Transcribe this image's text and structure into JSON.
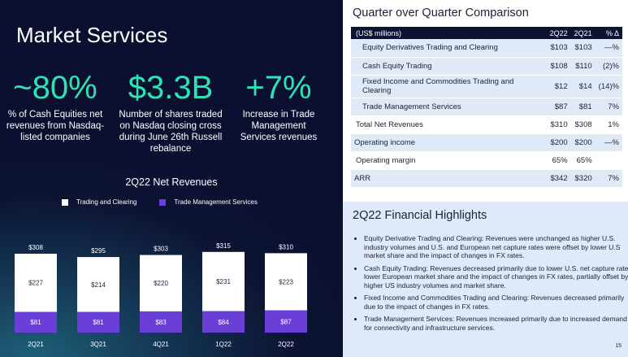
{
  "title": "Market Services",
  "kpis": [
    {
      "value": "~80%",
      "description": "% of Cash Equities net revenues from Nasdaq-listed companies"
    },
    {
      "value": "$3.3B",
      "description": "Number of shares traded on Nasdaq closing cross during June 26th Russell rebalance"
    },
    {
      "value": "+7%",
      "description": "Increase in Trade Management Services revenues"
    }
  ],
  "chart_data": {
    "type": "bar",
    "title": "2Q22 Net Revenues",
    "stacked": true,
    "categories": [
      "2Q21",
      "3Q21",
      "4Q21",
      "1Q22",
      "2Q22"
    ],
    "series": [
      {
        "name": "Trade Management Services",
        "values": [
          81,
          81,
          83,
          84,
          87
        ],
        "color": "#6a3fd8",
        "labels": [
          "$81",
          "$81",
          "$83",
          "$84",
          "$87"
        ]
      },
      {
        "name": "Trading and Clearing",
        "values": [
          227,
          214,
          220,
          231,
          223
        ],
        "color": "#ffffff",
        "labels": [
          "$227",
          "$214",
          "$220",
          "$231",
          "$223"
        ]
      }
    ],
    "totals": [
      308,
      295,
      303,
      315,
      310
    ],
    "total_labels": [
      "$308",
      "$295",
      "$303",
      "$315",
      "$310"
    ],
    "legend_order": [
      "Trading and Clearing",
      "Trade Management Services"
    ],
    "legend_position": "top",
    "grid": false
  },
  "comparison": {
    "title": "Quarter over Quarter Comparison",
    "headers": [
      "(US$ millions)",
      "2Q22",
      "2Q21",
      "% Δ"
    ],
    "rows": [
      {
        "label": "Equity Derivatives Trading and Clearing",
        "q2q22": "$103",
        "q2q21": "$103",
        "change": "—%",
        "type": "sub"
      },
      {
        "label": "Cash Equity Trading",
        "q2q22": "$108",
        "q2q21": "$110",
        "change": "(2)%",
        "type": "sub"
      },
      {
        "label": "Fixed Income and Commodities Trading and Clearing",
        "q2q22": "$12",
        "q2q21": "$14",
        "change": "(14)%",
        "type": "sub"
      },
      {
        "label": "Trade Management Services",
        "q2q22": "$87",
        "q2q21": "$81",
        "change": "7%",
        "type": "sub"
      },
      {
        "label": "Total Net Revenues",
        "q2q22": "$310",
        "q2q21": "$308",
        "change": "1%",
        "type": "main"
      },
      {
        "label": "Operating income",
        "q2q22": "$200",
        "q2q21": "$200",
        "change": "—%",
        "type": "shade"
      },
      {
        "label": "Operating margin",
        "q2q22": "65%",
        "q2q21": "65%",
        "change": "",
        "type": "main"
      },
      {
        "label": "ARR",
        "q2q22": "$342",
        "q2q21": "$320",
        "change": "7%",
        "type": "shade"
      }
    ]
  },
  "highlights": {
    "title": "2Q22 Financial Highlights",
    "items": [
      "Equity Derivative Trading and Clearing: Revenues were unchanged as higher U.S. industry volumes and U.S. and European net capture rates were offset by lower U.S market share and the  impact of changes in FX rates.",
      "Cash Equity Trading: Revenues decreased primarily due to lower U.S. net capture rate, lower European market share and the impact of changes in FX rates, partially offset by higher US industry volumes and market share.",
      "Fixed Income and Commodities Trading and Clearing: Revenues decreased primarily due to the impact of changes in FX rates.",
      "Trade Management Services: Revenues increased primarily due to increased demand for connectivity and infrastructure services."
    ]
  },
  "page_number": "15"
}
